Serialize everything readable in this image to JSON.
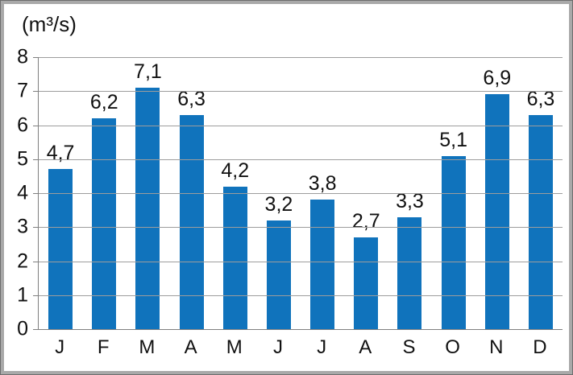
{
  "window": {
    "background": "#ffffff",
    "border_outer": "#6e6e6e",
    "border_inner": "#a9a9a9"
  },
  "chart_data": {
    "type": "bar",
    "title": "(m³/s)",
    "ylabel": "(m³/s)",
    "xlabel": "",
    "categories": [
      "J",
      "F",
      "M",
      "A",
      "M",
      "J",
      "J",
      "A",
      "S",
      "O",
      "N",
      "D"
    ],
    "values": [
      4.7,
      6.2,
      7.1,
      6.3,
      4.2,
      3.2,
      3.8,
      2.7,
      3.3,
      5.1,
      6.9,
      6.3
    ],
    "value_labels": [
      "4,7",
      "6,2",
      "7,1",
      "6,3",
      "4,2",
      "3,2",
      "3,8",
      "2,7",
      "3,3",
      "5,1",
      "6,9",
      "6,3"
    ],
    "yticks": [
      0,
      1,
      2,
      3,
      4,
      5,
      6,
      7,
      8
    ],
    "ylim": [
      0,
      8
    ],
    "grid": true,
    "legend": "none",
    "decimal_separator": ",",
    "colors": {
      "bar": "#1073BC",
      "gridline": "#9d9d9d",
      "axis": "#7f7f7f",
      "text": "#111111"
    }
  }
}
